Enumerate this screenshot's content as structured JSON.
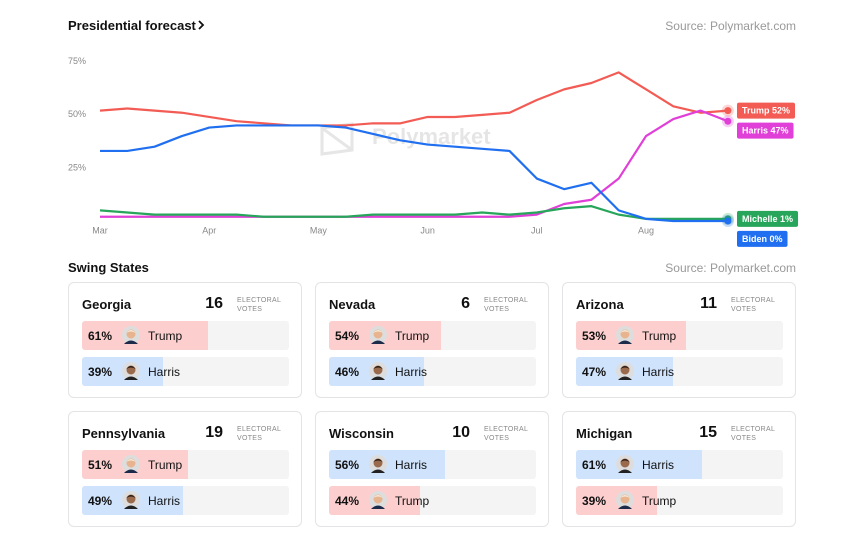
{
  "header": {
    "title": "Presidential forecast",
    "source": "Source: Polymarket.com"
  },
  "chart_data": {
    "type": "line",
    "watermark": "Polymarket",
    "categories": [
      "Mar",
      null,
      null,
      null,
      "Apr",
      null,
      null,
      null,
      "May",
      null,
      null,
      null,
      "Jun",
      null,
      null,
      null,
      "Jul",
      null,
      null,
      null,
      "Aug",
      null,
      null,
      null
    ],
    "ylim": [
      0,
      78
    ],
    "yticks": [
      {
        "value": 25,
        "label": "25%"
      },
      {
        "value": 50,
        "label": "50%"
      },
      {
        "value": 75,
        "label": "75%"
      }
    ],
    "grid": false,
    "series": [
      {
        "name": "Trump",
        "end_label": "Trump 52%",
        "color": "#f25c54",
        "values": [
          52,
          53,
          52,
          51,
          49,
          47,
          46,
          45,
          45,
          45,
          46,
          46,
          49,
          49,
          50,
          51,
          57,
          62,
          65,
          70,
          62,
          54,
          51,
          52
        ]
      },
      {
        "name": "Harris",
        "end_label": "Harris 47%",
        "color": "#e03fd8",
        "values": [
          2,
          2,
          2,
          2,
          2,
          2,
          2,
          2,
          2,
          2,
          2,
          2,
          2,
          2,
          2,
          2,
          3,
          8,
          10,
          20,
          40,
          48,
          52,
          47
        ]
      },
      {
        "name": "Michelle",
        "end_label": "Michelle 1%",
        "color": "#27a55a",
        "values": [
          5,
          4,
          3,
          3,
          3,
          3,
          2,
          2,
          2,
          2,
          3,
          3,
          3,
          3,
          4,
          3,
          4,
          6,
          7,
          3,
          1,
          1,
          1,
          1
        ]
      },
      {
        "name": "Biden",
        "end_label": "Biden 0%",
        "color": "#1f6ff0",
        "values": [
          33,
          33,
          35,
          40,
          44,
          45,
          45,
          45,
          45,
          44,
          41,
          38,
          36,
          35,
          34,
          33,
          20,
          15,
          18,
          5,
          1,
          0,
          0,
          0
        ]
      }
    ]
  },
  "swing_states": {
    "title": "Swing States",
    "source": "Source: Polymarket.com",
    "electoral_label": [
      "ELECTORAL",
      "VOTES"
    ],
    "candidate_colors": {
      "Trump": "#fccfce",
      "Harris": "#cfe3fc"
    },
    "states": [
      {
        "name": "Georgia",
        "electoral_votes": 16,
        "rows": [
          {
            "candidate": "Trump",
            "value": 61,
            "label": "61%"
          },
          {
            "candidate": "Harris",
            "value": 39,
            "label": "39%"
          }
        ]
      },
      {
        "name": "Nevada",
        "electoral_votes": 6,
        "rows": [
          {
            "candidate": "Trump",
            "value": 54,
            "label": "54%"
          },
          {
            "candidate": "Harris",
            "value": 46,
            "label": "46%"
          }
        ]
      },
      {
        "name": "Arizona",
        "electoral_votes": 11,
        "rows": [
          {
            "candidate": "Trump",
            "value": 53,
            "label": "53%"
          },
          {
            "candidate": "Harris",
            "value": 47,
            "label": "47%"
          }
        ]
      },
      {
        "name": "Pennsylvania",
        "electoral_votes": 19,
        "rows": [
          {
            "candidate": "Trump",
            "value": 51,
            "label": "51%"
          },
          {
            "candidate": "Harris",
            "value": 49,
            "label": "49%"
          }
        ]
      },
      {
        "name": "Wisconsin",
        "electoral_votes": 10,
        "rows": [
          {
            "candidate": "Harris",
            "value": 56,
            "label": "56%"
          },
          {
            "candidate": "Trump",
            "value": 44,
            "label": "44%"
          }
        ]
      },
      {
        "name": "Michigan",
        "electoral_votes": 15,
        "rows": [
          {
            "candidate": "Harris",
            "value": 61,
            "label": "61%"
          },
          {
            "candidate": "Trump",
            "value": 39,
            "label": "39%"
          }
        ]
      }
    ]
  }
}
